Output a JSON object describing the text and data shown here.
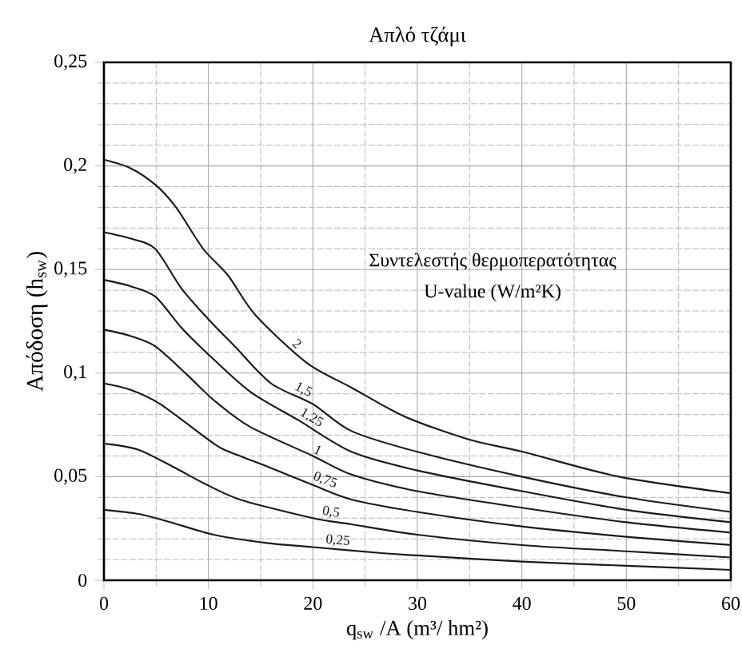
{
  "chart_data": {
    "type": "line",
    "title": "Απλό τζάμι",
    "xlabel": "q$_{sw}$ /A (m³/ hm²)",
    "ylabel": "Απόδοση (h$_{sw}$)",
    "annotations": [
      "Συντελεστής θερμοπερατότητας",
      "U-value (W/m²K)"
    ],
    "xlim": [
      0,
      60
    ],
    "ylim": [
      0,
      0.25
    ],
    "xticks": [
      0,
      10,
      20,
      30,
      40,
      50,
      60
    ],
    "yticks": [
      {
        "value": 0,
        "label": "0"
      },
      {
        "value": 0.05,
        "label": "0,05"
      },
      {
        "value": 0.1,
        "label": "0,1"
      },
      {
        "value": 0.15,
        "label": "0,15"
      },
      {
        "value": 0.2,
        "label": "0,2"
      },
      {
        "value": 0.25,
        "label": "0,25"
      }
    ],
    "grid": true,
    "legend": false,
    "marker": "none",
    "line_style": "solid",
    "series": [
      {
        "name": "2",
        "color": "#1a1a1a",
        "x": [
          0,
          2.5,
          4.9,
          6.9,
          9.5,
          11.9,
          14.5,
          19.4,
          23.7,
          28.8,
          34.9,
          40.1,
          49.3,
          60
        ],
        "values": [
          0.203,
          0.199,
          0.191,
          0.18,
          0.16,
          0.147,
          0.128,
          0.105,
          0.093,
          0.079,
          0.068,
          0.062,
          0.05,
          0.042
        ]
      },
      {
        "name": "1,5",
        "color": "#1a1a1a",
        "x": [
          0,
          2.5,
          4.9,
          7.4,
          10,
          12.5,
          16,
          20,
          23.7,
          30,
          40,
          50,
          60
        ],
        "values": [
          0.168,
          0.165,
          0.16,
          0.141,
          0.126,
          0.113,
          0.095,
          0.085,
          0.072,
          0.062,
          0.05,
          0.04,
          0.033
        ]
      },
      {
        "name": "1,25",
        "color": "#1a1a1a",
        "x": [
          0,
          2.5,
          4.9,
          7.4,
          10,
          14,
          18.7,
          23.7,
          30,
          40,
          50,
          60
        ],
        "values": [
          0.145,
          0.142,
          0.137,
          0.122,
          0.109,
          0.091,
          0.077,
          0.062,
          0.053,
          0.043,
          0.034,
          0.028
        ]
      },
      {
        "name": "1",
        "color": "#1a1a1a",
        "x": [
          0,
          2.5,
          4.9,
          8,
          10.5,
          14,
          20,
          23.7,
          30,
          40,
          50,
          60
        ],
        "values": [
          0.121,
          0.118,
          0.113,
          0.099,
          0.087,
          0.074,
          0.06,
          0.051,
          0.043,
          0.035,
          0.028,
          0.023
        ]
      },
      {
        "name": "0,75",
        "color": "#1a1a1a",
        "x": [
          0,
          2.5,
          5.4,
          10.5,
          12,
          15.6,
          20,
          23.7,
          30,
          40,
          50,
          60
        ],
        "values": [
          0.095,
          0.092,
          0.085,
          0.066,
          0.062,
          0.055,
          0.046,
          0.039,
          0.033,
          0.026,
          0.021,
          0.017
        ]
      },
      {
        "name": "0,5",
        "color": "#1a1a1a",
        "x": [
          0,
          3.3,
          6.9,
          9.5,
          13,
          20,
          23.7,
          30,
          40,
          50,
          60
        ],
        "values": [
          0.066,
          0.063,
          0.054,
          0.047,
          0.039,
          0.03,
          0.027,
          0.022,
          0.017,
          0.014,
          0.011
        ]
      },
      {
        "name": "0,25",
        "color": "#1a1a1a",
        "x": [
          0,
          3.3,
          6.4,
          10.5,
          15.6,
          20,
          26.8,
          30,
          40,
          50,
          60
        ],
        "values": [
          0.034,
          0.032,
          0.028,
          0.022,
          0.018,
          0.016,
          0.013,
          0.012,
          0.009,
          0.007,
          0.005
        ]
      }
    ]
  }
}
